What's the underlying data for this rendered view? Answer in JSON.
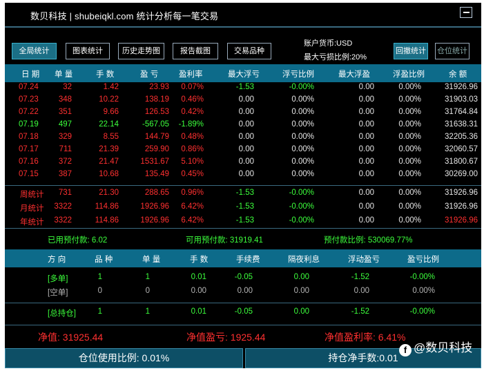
{
  "window": {
    "title": "数贝科技 | shubeiqkl.com 统计分析每一笔交易"
  },
  "toolbar": {
    "buttons": [
      "全局统计",
      "图表统计",
      "历史走势图",
      "报告截图",
      "交易品种",
      "回撤统计",
      "仓位统计"
    ],
    "account_currency": "账户货币:USD",
    "max_loss_ratio": "最大亏损比例:20%"
  },
  "table": {
    "headers": [
      "日 期",
      "单 量",
      "手 数",
      "盈 亏",
      "盈利率",
      "最大浮亏",
      "浮亏比例",
      "最大浮盈",
      "浮盈比例",
      "余 额"
    ],
    "rows": [
      [
        "07.24",
        "32",
        "1.42",
        "23.93",
        "0.07%",
        "-1.53",
        "-0.00%",
        "0.00",
        "0.00%",
        "31926.96"
      ],
      [
        "07.23",
        "348",
        "10.22",
        "138.19",
        "0.46%",
        "0.00",
        "0.00%",
        "0.00",
        "0.00%",
        "31903.03"
      ],
      [
        "07.22",
        "351",
        "9.66",
        "126.53",
        "0.42%",
        "0.00",
        "0.00%",
        "0.00",
        "0.00%",
        "31764.84"
      ],
      [
        "07.19",
        "497",
        "22.14",
        "-567.05",
        "-1.89%",
        "0.00",
        "0.00%",
        "0.00",
        "0.00%",
        "31638.31"
      ],
      [
        "07.18",
        "329",
        "8.55",
        "144.79",
        "0.48%",
        "0.00",
        "0.00%",
        "0.00",
        "0.00%",
        "32205.36"
      ],
      [
        "07.17",
        "711",
        "21.39",
        "259.90",
        "0.86%",
        "0.00",
        "0.00%",
        "0.00",
        "0.00%",
        "32060.57"
      ],
      [
        "07.16",
        "372",
        "21.47",
        "1531.67",
        "5.10%",
        "0.00",
        "0.00%",
        "0.00",
        "0.00%",
        "31800.67"
      ],
      [
        "07.15",
        "387",
        "10.68",
        "135.49",
        "0.45%",
        "0.00",
        "0.00%",
        "0.00",
        "0.00%",
        "30269.00"
      ]
    ],
    "summary": [
      [
        "周统计",
        "731",
        "21.30",
        "288.65",
        "0.96%",
        "-1.53",
        "-0.00%",
        "0.00",
        "0.00%",
        "31926.96"
      ],
      [
        "月统计",
        "3322",
        "114.86",
        "1926.96",
        "6.42%",
        "-1.53",
        "-0.00%",
        "0.00",
        "0.00%",
        "31926.96"
      ],
      [
        "年统计",
        "3322",
        "114.86",
        "1926.96",
        "6.42%",
        "-1.53",
        "-0.00%",
        "0.00",
        "0.00%",
        "31926.96"
      ]
    ]
  },
  "balance": {
    "used_margin": "已用预付款: 6.02",
    "free_margin": "可用预付款: 31919.41",
    "margin_ratio": "预付款比例: 530069.77%"
  },
  "positions": {
    "headers": [
      "方 向",
      "品 种",
      "单 量",
      "手 数",
      "手续费",
      "隔夜利息",
      "浮动盈亏",
      "盈亏比例"
    ],
    "rows": [
      [
        "[多单]",
        "1",
        "1",
        "0.01",
        "-0.05",
        "0.00",
        "-1.52",
        "-0.00%"
      ],
      [
        "[空单]",
        "0",
        "0",
        "0.00",
        "0.00",
        "0.00",
        "0.00",
        "0.00%"
      ]
    ],
    "total": [
      "[总持仓]",
      "1",
      "1",
      "0.01",
      "-0.05",
      "0.00",
      "-1.52",
      "-0.00%"
    ]
  },
  "net": {
    "equity": "净值: 31925.44",
    "equity_profit": "净值盈亏: 1925.44",
    "equity_rate": "净值盈利率: 6.41%"
  },
  "footer": {
    "position_usage": "仓位使用比例: 0.01%",
    "net_lots": "持仓净手数:0.01"
  },
  "watermark": {
    "text": "@数贝科技"
  }
}
